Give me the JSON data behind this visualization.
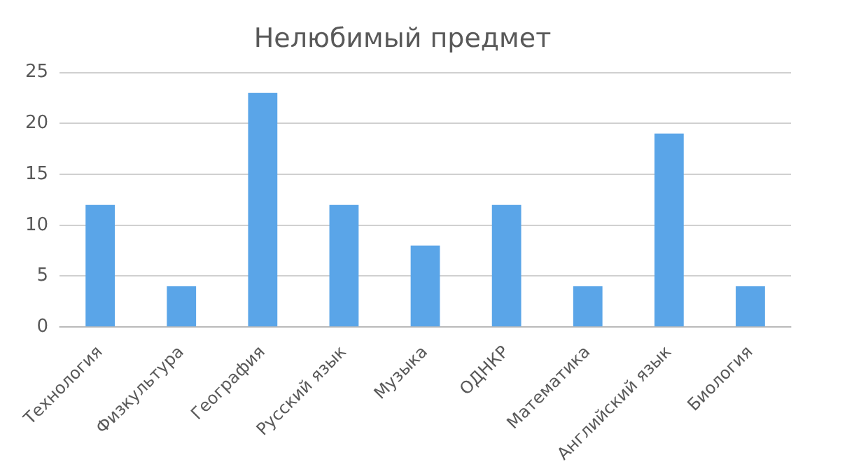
{
  "chart_data": {
    "type": "bar",
    "title": "Нелюбимый предмет",
    "categories": [
      "Технология",
      "Физкультура",
      "География",
      "Русский язык",
      "Музыка",
      "ОДНКР",
      "Математика",
      "Английский язык",
      "Биология"
    ],
    "values": [
      12,
      4,
      23,
      12,
      8,
      12,
      4,
      19,
      4
    ],
    "color": "#5aa5e8",
    "ylim": [
      0,
      25
    ],
    "yticks": [
      0,
      5,
      10,
      15,
      20,
      25
    ],
    "grid": "y",
    "legend": false
  }
}
